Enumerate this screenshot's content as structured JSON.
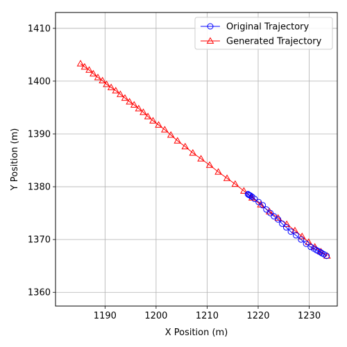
{
  "chart_data": {
    "type": "line",
    "xlabel": "X Position (m)",
    "ylabel": "Y Position (m)",
    "xlim": [
      1180.3,
      1235.5
    ],
    "ylim": [
      1357.4,
      1413.0
    ],
    "xticks": [
      1190,
      1200,
      1210,
      1220,
      1230
    ],
    "yticks": [
      1360,
      1370,
      1380,
      1390,
      1400,
      1410
    ],
    "grid": true,
    "legend": "top-right",
    "series": [
      {
        "name": "Original Trajectory",
        "color": "#0000ff",
        "marker": "circle",
        "x": [
          1218.0,
          1218.1,
          1218.3,
          1218.5,
          1218.8,
          1219.3,
          1220.1,
          1220.9,
          1221.6,
          1222.4,
          1223.1,
          1223.9,
          1224.7,
          1225.5,
          1226.4,
          1227.4,
          1228.4,
          1229.4,
          1230.3,
          1230.9,
          1231.4,
          1231.8,
          1232.2,
          1232.5,
          1232.9,
          1233.4
        ],
        "y": [
          1378.6,
          1378.5,
          1378.4,
          1378.3,
          1378.1,
          1377.7,
          1377.1,
          1376.5,
          1375.7,
          1375.0,
          1374.4,
          1373.8,
          1373.0,
          1372.3,
          1371.5,
          1370.8,
          1370.0,
          1369.2,
          1368.6,
          1368.3,
          1368.0,
          1367.8,
          1367.6,
          1367.4,
          1367.2,
          1366.9
        ]
      },
      {
        "name": "Generated Trajectory",
        "color": "#ff0000",
        "marker": "triangle",
        "x": [
          1185.2,
          1186.0,
          1186.9,
          1187.7,
          1188.6,
          1189.5,
          1190.3,
          1191.2,
          1192.1,
          1193.0,
          1193.9,
          1194.8,
          1195.7,
          1196.6,
          1197.5,
          1198.4,
          1199.4,
          1200.5,
          1201.7,
          1202.9,
          1204.2,
          1205.7,
          1207.2,
          1208.8,
          1210.5,
          1212.2,
          1213.9,
          1215.5,
          1217.2,
          1218.8,
          1220.5,
          1222.2,
          1223.9,
          1225.6,
          1227.2,
          1228.6,
          1229.9,
          1231.1,
          1232.3,
          1233.5
        ],
        "y": [
          1403.3,
          1402.7,
          1402.1,
          1401.4,
          1400.7,
          1400.1,
          1399.4,
          1398.8,
          1398.2,
          1397.5,
          1396.8,
          1396.1,
          1395.5,
          1394.8,
          1394.1,
          1393.3,
          1392.5,
          1391.7,
          1390.8,
          1389.8,
          1388.7,
          1387.6,
          1386.4,
          1385.3,
          1384.1,
          1382.8,
          1381.6,
          1380.5,
          1379.2,
          1377.9,
          1376.6,
          1375.3,
          1374.1,
          1372.9,
          1371.7,
          1370.6,
          1369.5,
          1368.6,
          1367.7,
          1366.9
        ]
      }
    ]
  }
}
